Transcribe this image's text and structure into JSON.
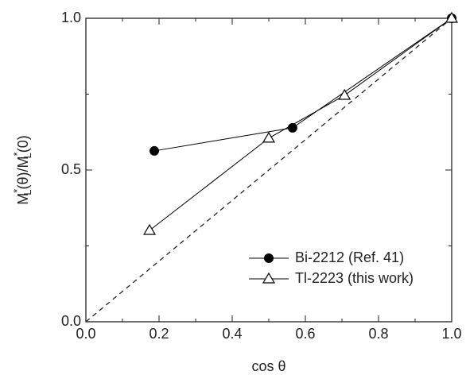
{
  "chart_data": {
    "type": "line",
    "x_label": "cos θ",
    "y_label": [
      {
        "text": "M"
      },
      {
        "text": "*",
        "script": "sup"
      },
      {
        "text": "L",
        "script": "sub"
      },
      {
        "text": "(θ)/M"
      },
      {
        "text": "*",
        "script": "sup"
      },
      {
        "text": "L",
        "script": "sub"
      },
      {
        "text": "(0)"
      }
    ],
    "series": [
      {
        "name": "Bi-2212 (Ref. 41)",
        "color": "#000000",
        "marker": "filled-circle",
        "x": [
          0.187,
          0.565,
          1.0
        ],
        "values": [
          0.563,
          0.639,
          1.0
        ]
      },
      {
        "name": "Tl-2223 (this work)",
        "color": "#000000",
        "marker": "open-triangle",
        "x": [
          0.174,
          0.5,
          0.707,
          1.0
        ],
        "values": [
          0.301,
          0.605,
          0.746,
          1.0
        ]
      }
    ],
    "diagonal": {
      "x": [
        0,
        1
      ],
      "values": [
        0,
        1
      ],
      "style": "dashed"
    },
    "xlim": [
      0,
      1
    ],
    "ylim": [
      0,
      1
    ],
    "xticks": [
      {
        "value": 0,
        "label": "0.0"
      },
      {
        "value": 0.2,
        "label": "0.2"
      },
      {
        "value": 0.4,
        "label": "0.4"
      },
      {
        "value": 0.6,
        "label": "0.6"
      },
      {
        "value": 0.8,
        "label": "0.8"
      },
      {
        "value": 1,
        "label": "1.0"
      }
    ],
    "xminorticks": [
      0.1,
      0.3,
      0.5,
      0.7,
      0.9
    ],
    "yticks": [
      {
        "value": 0,
        "label": "0.0"
      },
      {
        "value": 0.5,
        "label": "0.5"
      },
      {
        "value": 1,
        "label": "1.0"
      }
    ],
    "yminorticks": [
      0.25,
      0.75
    ],
    "legend": "lower-right",
    "grid": false
  }
}
